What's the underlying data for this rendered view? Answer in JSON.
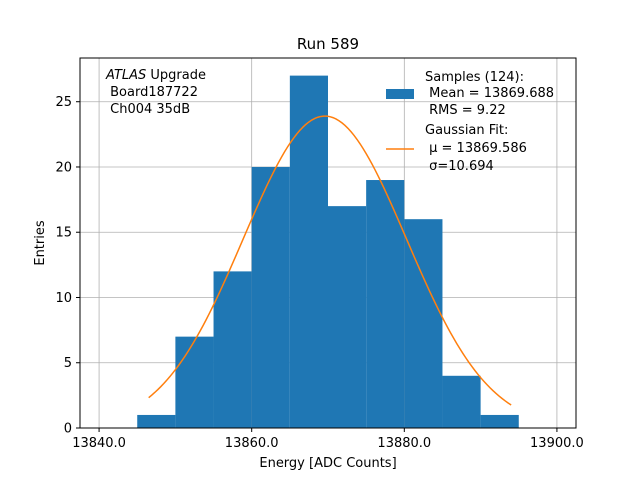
{
  "chart_data": {
    "type": "bar",
    "title": "Run 589",
    "xlabel": "Energy [ADC Counts]",
    "ylabel": "Entries",
    "xlim": [
      13837.5,
      13902.5
    ],
    "ylim": [
      0,
      28.35
    ],
    "xticks": [
      13840,
      13860,
      13880,
      13900
    ],
    "xtick_labels": [
      "13840.0",
      "13860.0",
      "13880.0",
      "13900.0"
    ],
    "yticks": [
      0,
      5,
      10,
      15,
      20,
      25
    ],
    "ytick_labels": [
      "0",
      "5",
      "10",
      "15",
      "20",
      "25"
    ],
    "grid": true,
    "bin_width": 5,
    "bins": [
      {
        "left": 13845,
        "count": 1
      },
      {
        "left": 13850,
        "count": 7
      },
      {
        "left": 13855,
        "count": 12
      },
      {
        "left": 13860,
        "count": 20
      },
      {
        "left": 13865,
        "count": 27
      },
      {
        "left": 13870,
        "count": 17
      },
      {
        "left": 13875,
        "count": 19
      },
      {
        "left": 13880,
        "count": 16
      },
      {
        "left": 13885,
        "count": 4
      },
      {
        "left": 13890,
        "count": 1
      }
    ],
    "fit": {
      "name": "Gaussian Fit",
      "mu": 13869.586,
      "sigma": 10.694,
      "amplitude": 23.9,
      "x_range": [
        13846.5,
        13894
      ]
    },
    "annotation": {
      "line1_italic": "ATLAS",
      "line1_rest": " Upgrade",
      "line2": " Board187722",
      "line3": " Ch004 35dB"
    },
    "legend": {
      "position": "top-right",
      "hist_line1": "Samples (124):",
      "hist_line2": " Mean = 13869.688",
      "hist_line3": " RMS = 9.22",
      "fit_line1": "Gaussian Fit:",
      "fit_line2": " μ = 13869.586",
      "fit_line3": " σ=10.694"
    },
    "colors": {
      "bar": "#1f77b4",
      "fit": "#ff7f0e",
      "grid": "#b0b0b0"
    }
  }
}
